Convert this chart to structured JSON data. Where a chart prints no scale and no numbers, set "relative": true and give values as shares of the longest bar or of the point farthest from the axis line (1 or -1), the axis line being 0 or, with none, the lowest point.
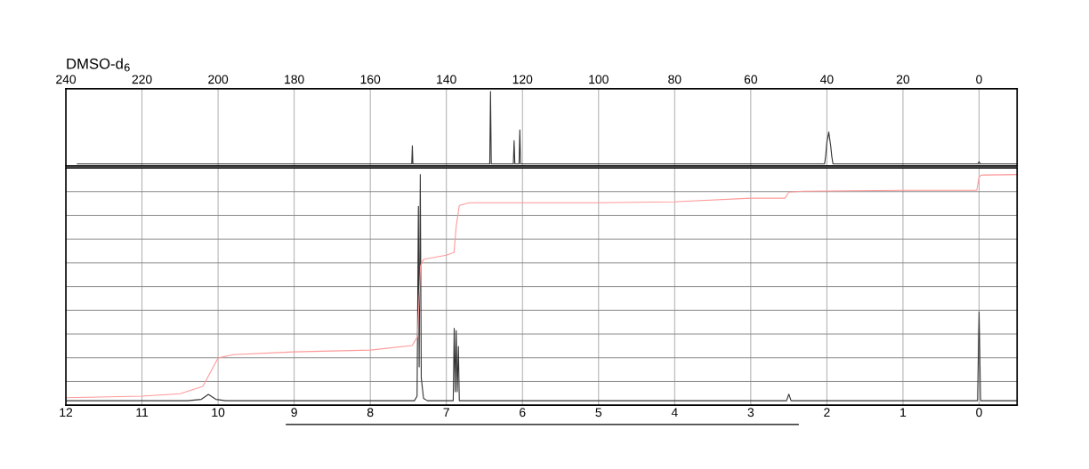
{
  "chart_data": [
    {
      "type": "line",
      "title": "DMSO-d$_{6}$",
      "relative": true,
      "xlim": [
        240,
        -10
      ],
      "xticks": [
        240,
        220,
        200,
        180,
        160,
        140,
        120,
        100,
        80,
        60,
        40,
        20,
        0
      ],
      "grid": "x",
      "tick_labels": "x",
      "series": [
        {
          "color": "#333333",
          "x": [
            237,
            149.1,
            148.95,
            148.8,
            128.6,
            128.4,
            128.2,
            122.4,
            122.2,
            122.0,
            120.9,
            120.7,
            120.5,
            40.6,
            40.3,
            40.0,
            39.7,
            39.5,
            39.3,
            39.0,
            38.7,
            38.4,
            0.3,
            0,
            -0.3,
            -10
          ],
          "values": [
            0,
            0,
            0.25,
            0,
            0,
            1.0,
            0,
            0,
            0.32,
            0,
            0,
            0.47,
            0,
            0,
            0.12,
            0.3,
            0.38,
            0.44,
            0.36,
            0.25,
            0.1,
            0,
            0,
            0.03,
            0,
            0
          ]
        }
      ]
    },
    {
      "type": "line",
      "relative": true,
      "xlim": [
        12,
        -0.5
      ],
      "xticks": [
        12,
        11,
        10,
        9,
        8,
        7,
        6,
        5,
        4,
        3,
        2,
        1,
        0
      ],
      "grid": true,
      "tick_labels": "x",
      "series": [
        {
          "color": "#333333",
          "x": [
            12,
            10.4,
            10.22,
            10.127,
            10.03,
            9.9,
            7.42,
            7.385,
            7.368,
            7.358,
            7.343,
            7.33,
            7.3,
            7.25,
            6.91,
            6.897,
            6.884,
            6.871,
            6.858,
            6.842,
            6.83,
            2.53,
            2.5,
            2.47,
            0.02,
            0,
            -0.02,
            -0.5
          ],
          "values": [
            0,
            0,
            0.006,
            0.028,
            0.006,
            0,
            0,
            0.02,
            0.86,
            0.15,
            1.0,
            0.1,
            0.01,
            0,
            0,
            0.32,
            0.04,
            0.31,
            0.04,
            0.24,
            0,
            0,
            0.029,
            0,
            0,
            0.393,
            0,
            0
          ]
        },
        {
          "color": "#ff9999",
          "x": [
            12,
            11,
            10.5,
            10.2,
            10.1,
            10.0,
            9.8,
            9,
            8,
            7.45,
            7.38,
            7.34,
            7.3,
            7.0,
            6.9,
            6.87,
            6.83,
            6.7,
            5,
            4,
            3,
            2.55,
            2.5,
            2.3,
            1,
            0.03,
            0,
            -0.03,
            -0.5
          ],
          "values": [
            0.013,
            0.02,
            0.031,
            0.063,
            0.126,
            0.189,
            0.204,
            0.216,
            0.224,
            0.244,
            0.283,
            0.597,
            0.625,
            0.644,
            0.656,
            0.774,
            0.864,
            0.876,
            0.876,
            0.88,
            0.896,
            0.896,
            0.923,
            0.927,
            0.931,
            0.931,
            0.99,
            0.998,
            1.0
          ]
        }
      ]
    }
  ]
}
